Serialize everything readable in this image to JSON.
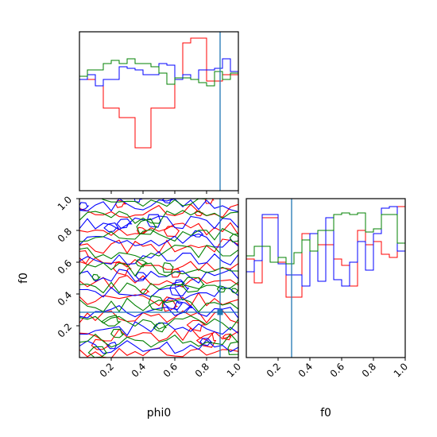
{
  "chart_data": {
    "type": "corner",
    "parameters": [
      "phi0",
      "f0"
    ],
    "xlabel_left": "phi0",
    "xlabel_right": "f0",
    "ylabel_left": "f0",
    "tick_labels": [
      "0.2",
      "0.4",
      "0.6",
      "0.8",
      "1.0"
    ],
    "range": [
      0,
      1
    ],
    "truth": {
      "phi0": 0.885,
      "f0": 0.285
    },
    "truth_color": "#1f77b4",
    "series": [
      {
        "color": "#ff0000",
        "hist_phi0": [
          0.7,
          0.7,
          0.66,
          0.52,
          0.52,
          0.46,
          0.46,
          0.27,
          0.27,
          0.52,
          0.52,
          0.52,
          0.71,
          0.93,
          0.96,
          0.96,
          0.69,
          0.69,
          0.73,
          0.73
        ],
        "hist_f0": [
          0.62,
          0.47,
          0.88,
          0.88,
          0.6,
          0.38,
          0.38,
          0.78,
          0.78,
          0.71,
          0.71,
          0.62,
          0.58,
          0.45,
          0.8,
          0.71,
          0.73,
          0.65,
          0.63,
          0.95
        ]
      },
      {
        "color": "#0000ff",
        "hist_phi0": [
          0.7,
          0.73,
          0.66,
          0.7,
          0.7,
          0.78,
          0.77,
          0.76,
          0.73,
          0.73,
          0.8,
          0.79,
          0.7,
          0.73,
          0.7,
          0.76,
          0.76,
          0.77,
          0.83,
          0.75
        ],
        "hist_f0": [
          0.54,
          0.61,
          0.9,
          0.9,
          0.59,
          0.52,
          0.52,
          0.45,
          0.78,
          0.48,
          0.88,
          0.49,
          0.45,
          0.6,
          0.73,
          0.55,
          0.78,
          0.94,
          0.95,
          0.67
        ]
      },
      {
        "color": "#008000",
        "hist_phi0": [
          0.72,
          0.76,
          0.76,
          0.8,
          0.82,
          0.8,
          0.83,
          0.8,
          0.8,
          0.78,
          0.74,
          0.67,
          0.71,
          0.71,
          0.7,
          0.68,
          0.66,
          0.75,
          0.7,
          0.74
        ],
        "hist_f0": [
          0.64,
          0.7,
          0.7,
          0.6,
          0.63,
          0.59,
          0.66,
          0.74,
          0.67,
          0.8,
          0.8,
          0.9,
          0.91,
          0.9,
          0.91,
          0.79,
          0.81,
          0.9,
          0.9,
          0.72
        ]
      }
    ],
    "contour_seeds": [
      [
        0.08,
        0.27,
        0.52,
        0.78,
        0.92
      ],
      [
        0.05,
        0.35,
        0.58,
        0.83,
        0.97
      ],
      [
        0.12,
        0.42,
        0.63,
        0.88,
        0.98
      ]
    ]
  }
}
